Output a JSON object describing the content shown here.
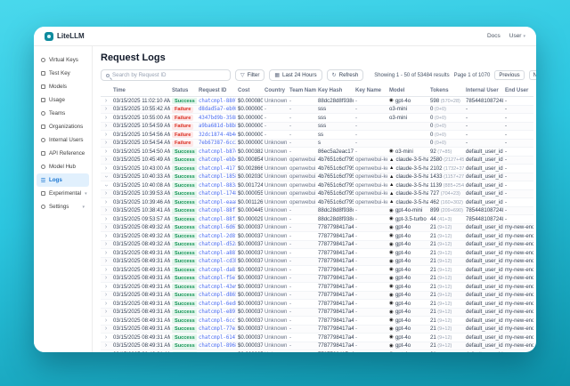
{
  "colors": {
    "background_top": "#49d8ec",
    "background_bottom": "#0d93aa",
    "active_nav_bg": "#e1f0fd",
    "active_nav_text": "#1774d1",
    "success_bg": "#e3f6ec",
    "success_text": "#149356",
    "failure_bg": "#fde8e8",
    "failure_text": "#d92d20",
    "request_id_link": "#4a6cf0"
  },
  "topbar": {
    "brand": "LiteLLM",
    "docs_label": "Docs",
    "user_label": "User"
  },
  "sidebar": {
    "items": [
      {
        "id": "virtual-keys",
        "label": "Virtual Keys",
        "icon": "key-icon",
        "active": false,
        "has_chevron": false
      },
      {
        "id": "test-key",
        "label": "Test Key",
        "icon": "beaker-icon",
        "active": false,
        "has_chevron": false
      },
      {
        "id": "models",
        "label": "Models",
        "icon": "cube-icon",
        "active": false,
        "has_chevron": false
      },
      {
        "id": "usage",
        "label": "Usage",
        "icon": "bar-chart-icon",
        "active": false,
        "has_chevron": false
      },
      {
        "id": "teams",
        "label": "Teams",
        "icon": "users-icon",
        "active": false,
        "has_chevron": false
      },
      {
        "id": "organizations",
        "label": "Organizations",
        "icon": "building-icon",
        "active": false,
        "has_chevron": false
      },
      {
        "id": "internal-users",
        "label": "Internal Users",
        "icon": "user-icon",
        "active": false,
        "has_chevron": false
      },
      {
        "id": "api-reference",
        "label": "API Reference",
        "icon": "code-icon",
        "active": false,
        "has_chevron": false
      },
      {
        "id": "model-hub",
        "label": "Model Hub",
        "icon": "hub-icon",
        "active": false,
        "has_chevron": false
      },
      {
        "id": "logs",
        "label": "Logs",
        "icon": "list-icon",
        "active": true,
        "has_chevron": false
      },
      {
        "id": "experimental",
        "label": "Experimental",
        "icon": "flask-icon",
        "active": false,
        "has_chevron": true
      },
      {
        "id": "settings",
        "label": "Settings",
        "icon": "gear-icon",
        "active": false,
        "has_chevron": true
      }
    ]
  },
  "page": {
    "title": "Request Logs"
  },
  "toolbar": {
    "search_placeholder": "Search by Request ID",
    "filter_label": "Filter",
    "range_label": "Last 24 Hours",
    "refresh_label": "Refresh"
  },
  "pagination": {
    "summary": "Showing 1 - 50 of 53484 results",
    "page_info": "Page 1 of 1070",
    "previous_label": "Previous",
    "next_label": "Next"
  },
  "table": {
    "columns": [
      "",
      "Time",
      "Status",
      "Request ID",
      "Cost",
      "Country",
      "Team Name",
      "Key Hash",
      "Key Name",
      "Model",
      "Tokens",
      "Internal User",
      "End User"
    ],
    "rows": [
      {
        "time": "03/15/2025 11:02:10 AM",
        "status": "Success",
        "request_id": "chatcmpl-8807...",
        "cost": "$0.000080",
        "country": "Unknown",
        "team": "-",
        "key_hash": "88dc28d8f938c...",
        "key_name": "-",
        "model": "gpt-4o",
        "provider": "openai",
        "tokens": "598",
        "tokens_detail": "(570+28)",
        "internal_user": "7854481087248...",
        "end_user": "-",
        "expanded": false
      },
      {
        "time": "03/15/2025 10:55:42 AM",
        "status": "Failure",
        "request_id": "d8dad5a7-eb08...",
        "cost": "$0.000000",
        "country": "-",
        "team": "-",
        "key_hash": "sss",
        "key_name": "-",
        "model": "o3-mini",
        "provider": null,
        "tokens": "0",
        "tokens_detail": "(0+0)",
        "internal_user": "-",
        "end_user": "-",
        "expanded": false
      },
      {
        "time": "03/15/2025 10:55:00 AM",
        "status": "Failure",
        "request_id": "4347bd9b-3588...",
        "cost": "$0.000000",
        "country": "-",
        "team": "-",
        "key_hash": "sss",
        "key_name": "-",
        "model": "o3-mini",
        "provider": null,
        "tokens": "0",
        "tokens_detail": "(0+0)",
        "internal_user": "-",
        "end_user": "-",
        "expanded": false
      },
      {
        "time": "03/15/2025 10:54:59 AM",
        "status": "Failure",
        "request_id": "a9ba681d-b8b8...",
        "cost": "$0.000000",
        "country": "-",
        "team": "-",
        "key_hash": "sss",
        "key_name": "-",
        "model": "",
        "provider": null,
        "tokens": "0",
        "tokens_detail": "(0+0)",
        "internal_user": "-",
        "end_user": "-",
        "expanded": false
      },
      {
        "time": "03/15/2025 10:54:56 AM",
        "status": "Failure",
        "request_id": "32dc1874-4b4e...",
        "cost": "$0.000000",
        "country": "-",
        "team": "-",
        "key_hash": "ss",
        "key_name": "-",
        "model": "",
        "provider": null,
        "tokens": "0",
        "tokens_detail": "(0+0)",
        "internal_user": "-",
        "end_user": "-",
        "expanded": false
      },
      {
        "time": "03/15/2025 10:54:54 AM",
        "status": "Failure",
        "request_id": "7eb67387-6cc2...",
        "cost": "$0.000000",
        "country": "Unknown",
        "team": "-",
        "key_hash": "s",
        "key_name": "-",
        "model": "",
        "provider": null,
        "tokens": "0",
        "tokens_detail": "(0+0)",
        "internal_user": "-",
        "end_user": "-",
        "expanded": false
      },
      {
        "time": "03/15/2025 10:54:50 AM",
        "status": "Success",
        "request_id": "chatcmpl-b87e...",
        "cost": "$0.000382",
        "country": "Unknown",
        "team": "-",
        "key_hash": "86ec5a2eac17e...",
        "key_name": "-",
        "model": "o3-mini",
        "provider": "openai",
        "tokens": "92",
        "tokens_detail": "(7+85)",
        "internal_user": "default_user_id",
        "end_user": "-",
        "expanded": false
      },
      {
        "time": "03/15/2025 10:45:49 AM",
        "status": "Success",
        "request_id": "chatcmpl-ebbe...",
        "cost": "$0.000854",
        "country": "Unknown",
        "team": "openwebui",
        "key_hash": "4b7651c6cf795...",
        "key_name": "openwebui-key-2",
        "model": "claude-3-5-hai...",
        "provider": "anthropic",
        "tokens": "2580",
        "tokens_detail": "(2127+453)",
        "internal_user": "default_user_id",
        "end_user": "-",
        "expanded": false
      },
      {
        "time": "03/15/2025 10:43:00 AM",
        "status": "Success",
        "request_id": "chatcmpl-4177...",
        "cost": "$0.002866",
        "country": "Unknown",
        "team": "openwebui",
        "key_hash": "4b7651c6cf795...",
        "key_name": "openwebui-key-2",
        "model": "claude-3-5-hai...",
        "provider": "anthropic",
        "tokens": "2102",
        "tokens_detail": "(1732+370)",
        "internal_user": "default_user_id",
        "end_user": "-",
        "expanded": false
      },
      {
        "time": "03/15/2025 10:40:33 AM",
        "status": "Success",
        "request_id": "chatcmpl-1858...",
        "cost": "$0.002030",
        "country": "Unknown",
        "team": "openwebui",
        "key_hash": "4b7651c6cf795...",
        "key_name": "openwebui-key-2",
        "model": "claude-3-5-hai...",
        "provider": "anthropic",
        "tokens": "1433",
        "tokens_detail": "(1157+276)",
        "internal_user": "default_user_id",
        "end_user": "-",
        "expanded": true
      },
      {
        "time": "03/15/2025 10:40:08 AM",
        "status": "Success",
        "request_id": "chatcmpl-883a...",
        "cost": "$0.001724",
        "country": "Unknown",
        "team": "openwebui",
        "key_hash": "4b7651c6cf795...",
        "key_name": "openwebui-key-2",
        "model": "claude-3-5-hai...",
        "provider": "anthropic",
        "tokens": "1139",
        "tokens_detail": "(885+254)",
        "internal_user": "default_user_id",
        "end_user": "-",
        "expanded": true
      },
      {
        "time": "03/15/2025 10:39:53 AM",
        "status": "Success",
        "request_id": "chatcmpl-1748...",
        "cost": "$0.000055",
        "country": "Unknown",
        "team": "openwebui",
        "key_hash": "4b7651c6cf795...",
        "key_name": "openwebui-key-2",
        "model": "claude-3-5-hai...",
        "provider": "anthropic",
        "tokens": "727",
        "tokens_detail": "(704+23)",
        "internal_user": "default_user_id",
        "end_user": "-",
        "expanded": false
      },
      {
        "time": "03/15/2025 10:39:46 AM",
        "status": "Success",
        "request_id": "chatcmpl-eaa8...",
        "cost": "$0.001126",
        "country": "Unknown",
        "team": "openwebui",
        "key_hash": "4b7651c6cf795...",
        "key_name": "openwebui-key-2",
        "model": "claude-3-5-hai...",
        "provider": "anthropic",
        "tokens": "462",
        "tokens_detail": "(160+302)",
        "internal_user": "default_user_id",
        "end_user": "-",
        "expanded": false
      },
      {
        "time": "03/15/2025 10:38:41 AM",
        "status": "Success",
        "request_id": "chatcmpl-88f7...",
        "cost": "$0.000445",
        "country": "Unknown",
        "team": "-",
        "key_hash": "88dc28d8f938c...",
        "key_name": "-",
        "model": "gpt-4o-mini",
        "provider": "openai",
        "tokens": "899",
        "tokens_detail": "(209+690)",
        "internal_user": "7854481087248...",
        "end_user": "-",
        "expanded": false
      },
      {
        "time": "03/15/2025 09:53:57 AM",
        "status": "Success",
        "request_id": "chatcmpl-88f3...",
        "cost": "$0.000029",
        "country": "Unknown",
        "team": "-",
        "key_hash": "88dc28d8f938c...",
        "key_name": "-",
        "model": "gpt-3.5-turbo",
        "provider": "openai",
        "tokens": "44",
        "tokens_detail": "(41+3)",
        "internal_user": "7854481087248...",
        "end_user": "-",
        "expanded": false
      },
      {
        "time": "03/15/2025 08:49:32 AM",
        "status": "Success",
        "request_id": "chatcmpl-6d67...",
        "cost": "$0.000037",
        "country": "Unknown",
        "team": "-",
        "key_hash": "7787798417a4d...",
        "key_name": "-",
        "model": "gpt-4o",
        "provider": "openai",
        "tokens": "21",
        "tokens_detail": "(9+12)",
        "internal_user": "default_user_id",
        "end_user": "my-new-end-user-1",
        "expanded": false
      },
      {
        "time": "03/15/2025 08:49:32 AM",
        "status": "Success",
        "request_id": "chatcmpl-2d8f...",
        "cost": "$0.000037",
        "country": "Unknown",
        "team": "-",
        "key_hash": "7787798417a4d...",
        "key_name": "-",
        "model": "gpt-4o",
        "provider": "openai",
        "tokens": "21",
        "tokens_detail": "(9+12)",
        "internal_user": "default_user_id",
        "end_user": "my-new-end-user-1",
        "expanded": false
      },
      {
        "time": "03/15/2025 08:49:32 AM",
        "status": "Success",
        "request_id": "chatcmpl-d52a...",
        "cost": "$0.000037",
        "country": "Unknown",
        "team": "-",
        "key_hash": "7787798417a4d...",
        "key_name": "-",
        "model": "gpt-4o",
        "provider": "openai",
        "tokens": "21",
        "tokens_detail": "(9+12)",
        "internal_user": "default_user_id",
        "end_user": "my-new-end-user-1",
        "expanded": false
      },
      {
        "time": "03/15/2025 08:49:31 AM",
        "status": "Success",
        "request_id": "chatcmpl-a887...",
        "cost": "$0.000037",
        "country": "Unknown",
        "team": "-",
        "key_hash": "7787798417a4d...",
        "key_name": "-",
        "model": "gpt-4o",
        "provider": "openai",
        "tokens": "21",
        "tokens_detail": "(9+12)",
        "internal_user": "default_user_id",
        "end_user": "my-new-end-user-1",
        "expanded": false
      },
      {
        "time": "03/15/2025 08:49:31 AM",
        "status": "Success",
        "request_id": "chatcmpl-cd3b...",
        "cost": "$0.000037",
        "country": "Unknown",
        "team": "-",
        "key_hash": "7787798417a4d...",
        "key_name": "-",
        "model": "gpt-4o",
        "provider": "openai",
        "tokens": "21",
        "tokens_detail": "(9+12)",
        "internal_user": "default_user_id",
        "end_user": "my-new-end-user-1",
        "expanded": false
      },
      {
        "time": "03/15/2025 08:49:31 AM",
        "status": "Success",
        "request_id": "chatcmpl-da81...",
        "cost": "$0.000037",
        "country": "Unknown",
        "team": "-",
        "key_hash": "7787798417a4d...",
        "key_name": "-",
        "model": "gpt-4o",
        "provider": "openai",
        "tokens": "21",
        "tokens_detail": "(9+12)",
        "internal_user": "default_user_id",
        "end_user": "my-new-end-user-1",
        "expanded": false
      },
      {
        "time": "03/15/2025 08:49:31 AM",
        "status": "Success",
        "request_id": "chatcmpl-f5e7...",
        "cost": "$0.000037",
        "country": "Unknown",
        "team": "-",
        "key_hash": "7787798417a4d...",
        "key_name": "-",
        "model": "gpt-4o",
        "provider": "openai",
        "tokens": "21",
        "tokens_detail": "(9+12)",
        "internal_user": "default_user_id",
        "end_user": "my-new-end-user-1",
        "expanded": false
      },
      {
        "time": "03/15/2025 08:49:31 AM",
        "status": "Success",
        "request_id": "chatcmpl-43e9...",
        "cost": "$0.000037",
        "country": "Unknown",
        "team": "-",
        "key_hash": "7787798417a4d...",
        "key_name": "-",
        "model": "gpt-4o",
        "provider": "openai",
        "tokens": "21",
        "tokens_detail": "(9+12)",
        "internal_user": "default_user_id",
        "end_user": "my-new-end-user-1",
        "expanded": false
      },
      {
        "time": "03/15/2025 08:49:31 AM",
        "status": "Success",
        "request_id": "chatcmpl-d865...",
        "cost": "$0.000037",
        "country": "Unknown",
        "team": "-",
        "key_hash": "7787798417a4d...",
        "key_name": "-",
        "model": "gpt-4o",
        "provider": "openai",
        "tokens": "21",
        "tokens_detail": "(9+12)",
        "internal_user": "default_user_id",
        "end_user": "my-new-end-user-1",
        "expanded": false
      },
      {
        "time": "03/15/2025 08:49:31 AM",
        "status": "Success",
        "request_id": "chatcmpl-6ed8...",
        "cost": "$0.000037",
        "country": "Unknown",
        "team": "-",
        "key_hash": "7787798417a4d...",
        "key_name": "-",
        "model": "gpt-4o",
        "provider": "openai",
        "tokens": "21",
        "tokens_detail": "(9+12)",
        "internal_user": "default_user_id",
        "end_user": "my-new-end-user-1",
        "expanded": false
      },
      {
        "time": "03/15/2025 08:49:31 AM",
        "status": "Success",
        "request_id": "chatcmpl-e891...",
        "cost": "$0.000037",
        "country": "Unknown",
        "team": "-",
        "key_hash": "7787798417a4d...",
        "key_name": "-",
        "model": "gpt-4o",
        "provider": "openai",
        "tokens": "21",
        "tokens_detail": "(9+12)",
        "internal_user": "default_user_id",
        "end_user": "my-new-end-user-1",
        "expanded": false
      },
      {
        "time": "03/15/2025 08:49:31 AM",
        "status": "Success",
        "request_id": "chatcmpl-6cc7...",
        "cost": "$0.000037",
        "country": "Unknown",
        "team": "-",
        "key_hash": "7787798417a4d...",
        "key_name": "-",
        "model": "gpt-4o",
        "provider": "openai",
        "tokens": "21",
        "tokens_detail": "(9+12)",
        "internal_user": "default_user_id",
        "end_user": "my-new-end-user-1",
        "expanded": false
      },
      {
        "time": "03/15/2025 08:49:31 AM",
        "status": "Success",
        "request_id": "chatcmpl-77e1...",
        "cost": "$0.000037",
        "country": "Unknown",
        "team": "-",
        "key_hash": "7787798417a4d...",
        "key_name": "-",
        "model": "gpt-4o",
        "provider": "openai",
        "tokens": "21",
        "tokens_detail": "(9+12)",
        "internal_user": "default_user_id",
        "end_user": "my-new-end-user-1",
        "expanded": false
      },
      {
        "time": "03/15/2025 08:49:31 AM",
        "status": "Success",
        "request_id": "chatcmpl-6147...",
        "cost": "$0.000037",
        "country": "Unknown",
        "team": "-",
        "key_hash": "7787798417a4d...",
        "key_name": "-",
        "model": "gpt-4o",
        "provider": "openai",
        "tokens": "21",
        "tokens_detail": "(9+12)",
        "internal_user": "default_user_id",
        "end_user": "my-new-end-user-1",
        "expanded": false
      },
      {
        "time": "03/15/2025 08:49:31 AM",
        "status": "Success",
        "request_id": "chatcmpl-8968...",
        "cost": "$0.000037",
        "country": "Unknown",
        "team": "-",
        "key_hash": "7787798417a4d...",
        "key_name": "-",
        "model": "gpt-4o",
        "provider": "openai",
        "tokens": "21",
        "tokens_detail": "(9+12)",
        "internal_user": "default_user_id",
        "end_user": "my-new-end-user-1",
        "expanded": false
      },
      {
        "time": "03/15/2025 08:49:31 AM",
        "status": "Success",
        "request_id": "chatcmpl-e777...",
        "cost": "$0.000037",
        "country": "Unknown",
        "team": "-",
        "key_hash": "7787798417a4d...",
        "key_name": "-",
        "model": "gpt-4o",
        "provider": "openai",
        "tokens": "21",
        "tokens_detail": "(9+12)",
        "internal_user": "default_user_id",
        "end_user": "my-new-end-user-1",
        "expanded": false
      }
    ]
  }
}
